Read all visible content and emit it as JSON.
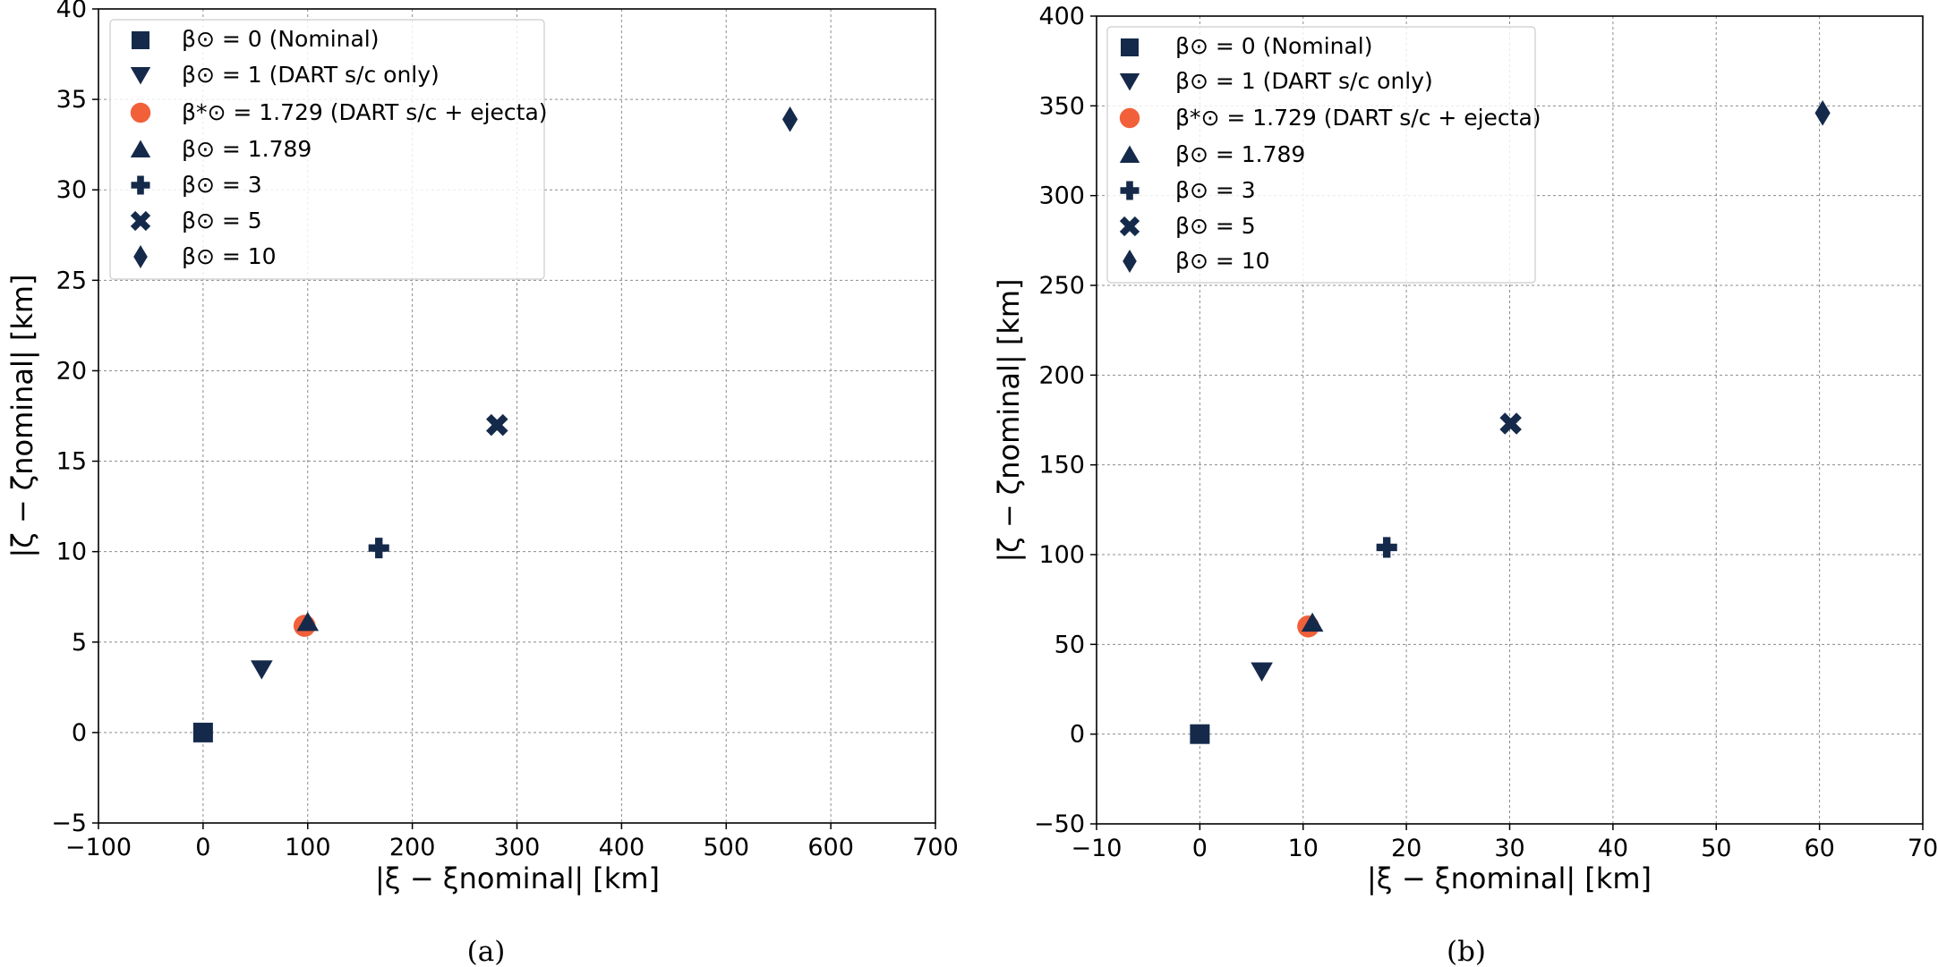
{
  "colors": {
    "navy": "#152a4a",
    "orange": "#f2603a"
  },
  "chart_data": [
    {
      "type": "scatter",
      "panel_label": "(a)",
      "xlabel": "|ξ − ξnominal| [km]",
      "ylabel": "|ζ − ζnominal| [km]",
      "xlim": [
        -100,
        700
      ],
      "ylim": [
        -5,
        40
      ],
      "xticks": [
        -100,
        0,
        100,
        200,
        300,
        400,
        500,
        600,
        700
      ],
      "yticks": [
        -5,
        0,
        5,
        10,
        15,
        20,
        25,
        30,
        35,
        40
      ],
      "xtick_labels": [
        "−100",
        "0",
        "100",
        "200",
        "300",
        "400",
        "500",
        "600",
        "700"
      ],
      "ytick_labels": [
        "−5",
        "0",
        "5",
        "10",
        "15",
        "20",
        "25",
        "30",
        "35",
        "40"
      ],
      "grid": true,
      "legend_position": "top-left",
      "series": [
        {
          "name": "β⊙ = 0 (Nominal)",
          "marker": "square",
          "color": "navy",
          "x": 0,
          "y": 0
        },
        {
          "name": "β⊙ = 1 (DART s/c only)",
          "marker": "triangle-down",
          "color": "navy",
          "x": 56,
          "y": 3.5
        },
        {
          "name": "β*⊙ = 1.729 (DART s/c + ejecta)",
          "marker": "circle",
          "color": "orange",
          "x": 97,
          "y": 5.9
        },
        {
          "name": "β⊙ = 1.789",
          "marker": "triangle-up",
          "color": "navy",
          "x": 100,
          "y": 6.1
        },
        {
          "name": "β⊙ = 3",
          "marker": "plus",
          "color": "navy",
          "x": 168,
          "y": 10.2
        },
        {
          "name": "β⊙ = 5",
          "marker": "x",
          "color": "navy",
          "x": 281,
          "y": 17.0
        },
        {
          "name": "β⊙ = 10",
          "marker": "diamond",
          "color": "navy",
          "x": 561,
          "y": 33.9
        }
      ]
    },
    {
      "type": "scatter",
      "panel_label": "(b)",
      "xlabel": "|ξ − ξnominal| [km]",
      "ylabel": "|ζ − ζnominal| [km]",
      "xlim": [
        -10,
        70
      ],
      "ylim": [
        -50,
        400
      ],
      "xticks": [
        -10,
        0,
        10,
        20,
        30,
        40,
        50,
        60,
        70
      ],
      "yticks": [
        -50,
        0,
        50,
        100,
        150,
        200,
        250,
        300,
        350,
        400
      ],
      "xtick_labels": [
        "−10",
        "0",
        "10",
        "20",
        "30",
        "40",
        "50",
        "60",
        "70"
      ],
      "ytick_labels": [
        "−50",
        "0",
        "50",
        "100",
        "150",
        "200",
        "250",
        "300",
        "350",
        "400"
      ],
      "grid": true,
      "legend_position": "top-left",
      "series": [
        {
          "name": "β⊙ = 0 (Nominal)",
          "marker": "square",
          "color": "navy",
          "x": 0,
          "y": 0
        },
        {
          "name": "β⊙ = 1 (DART s/c only)",
          "marker": "triangle-down",
          "color": "navy",
          "x": 6.0,
          "y": 35
        },
        {
          "name": "β*⊙ = 1.729 (DART s/c + ejecta)",
          "marker": "circle",
          "color": "orange",
          "x": 10.5,
          "y": 60
        },
        {
          "name": "β⊙ = 1.789",
          "marker": "triangle-up",
          "color": "navy",
          "x": 10.9,
          "y": 62
        },
        {
          "name": "β⊙ = 3",
          "marker": "plus",
          "color": "navy",
          "x": 18.1,
          "y": 104
        },
        {
          "name": "β⊙ = 5",
          "marker": "x",
          "color": "navy",
          "x": 30.1,
          "y": 173
        },
        {
          "name": "β⊙ = 10",
          "marker": "diamond",
          "color": "navy",
          "x": 60.3,
          "y": 346
        }
      ]
    }
  ]
}
